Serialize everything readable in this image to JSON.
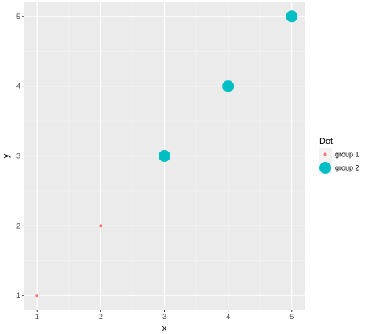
{
  "chart_data": {
    "type": "scatter",
    "title": "",
    "xlabel": "x",
    "ylabel": "y",
    "xlim": [
      0.8,
      5.2
    ],
    "ylim": [
      0.8,
      5.2
    ],
    "x_ticks": [
      1,
      2,
      3,
      4,
      5
    ],
    "y_ticks": [
      1,
      2,
      3,
      4,
      5
    ],
    "grid": true,
    "legend": {
      "title": "Dot",
      "placement": "right"
    },
    "series": [
      {
        "name": "group 1",
        "color": "#F8766D",
        "marker_size": "small",
        "points": [
          {
            "x": 1,
            "y": 1
          },
          {
            "x": 2,
            "y": 2
          }
        ]
      },
      {
        "name": "group 2",
        "color": "#00BFC4",
        "marker_size": "large",
        "points": [
          {
            "x": 3,
            "y": 3
          },
          {
            "x": 4,
            "y": 4
          },
          {
            "x": 5,
            "y": 5
          }
        ]
      }
    ]
  }
}
